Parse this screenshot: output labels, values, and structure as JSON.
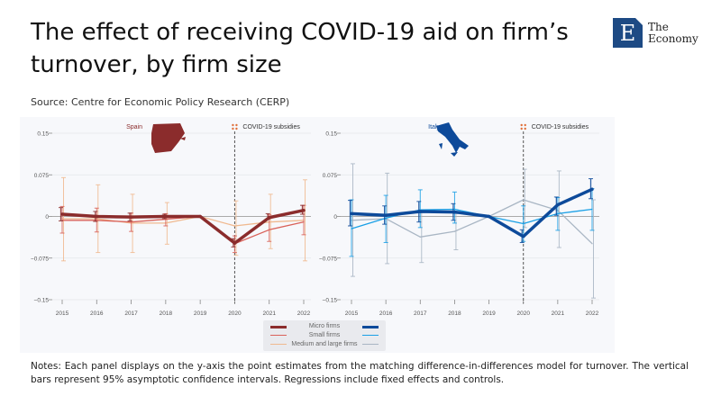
{
  "title": "The effect of receiving COVID-19 aid on firm’s turnover, by firm size",
  "source": "Source: Centre for Economic Policy Research (CERP)",
  "logo": {
    "mark": "E",
    "line1": "The",
    "line2": "Economy"
  },
  "notes": "Notes: Each panel displays on the y-axis the point estimates from the matching difference-in-differences model for turnover. The vertical bars represent 95% asymptotic confidence intervals. Regressions include fixed effects and controls.",
  "legend": {
    "items": [
      "Micro firms",
      "Small firms",
      "Medium and large firms"
    ]
  },
  "colors": {
    "spain": [
      "#8b2c2c",
      "#d9625a",
      "#f0b98f"
    ],
    "italy": [
      "#0d4a9a",
      "#1aa0e6",
      "#a9b6c4"
    ],
    "annotation": "#e0703a"
  },
  "chart_data": [
    {
      "type": "line",
      "title": "Spain",
      "annotation": "COVID-19 subsidies",
      "annotation_x": "2020",
      "x": [
        "2015",
        "2016",
        "2017",
        "2018",
        "2019",
        "2020",
        "2021",
        "2022"
      ],
      "ylim": [
        -0.15,
        0.15
      ],
      "yticks": [
        "0.15",
        "0.075",
        "0",
        "−0.075",
        "−0.15"
      ],
      "ytick_values": [
        0.15,
        0.075,
        0,
        -0.075,
        -0.15
      ],
      "series": [
        {
          "name": "Micro firms",
          "values": [
            0.004,
            0,
            -0.001,
            0,
            0,
            -0.048,
            -0.002,
            0.011
          ],
          "ci_low": [
            -0.008,
            -0.009,
            -0.008,
            -0.004,
            0,
            -0.055,
            -0.005,
            0.004
          ],
          "ci_high": [
            0.016,
            0.009,
            0.006,
            0.004,
            0,
            -0.04,
            0.005,
            0.02
          ]
        },
        {
          "name": "Small firms",
          "values": [
            -0.007,
            -0.007,
            -0.01,
            -0.005,
            0,
            -0.049,
            -0.024,
            -0.01
          ],
          "ci_low": [
            -0.03,
            -0.028,
            -0.027,
            -0.017,
            0,
            -0.065,
            -0.045,
            -0.033
          ],
          "ci_high": [
            0.018,
            0.015,
            0.006,
            0.005,
            0,
            -0.035,
            0.003,
            0.02
          ]
        },
        {
          "name": "Medium and large firms",
          "values": [
            -0.004,
            -0.004,
            -0.012,
            -0.012,
            0,
            -0.017,
            -0.01,
            -0.007
          ],
          "ci_low": [
            -0.08,
            -0.065,
            -0.065,
            -0.05,
            0,
            -0.07,
            -0.058,
            -0.08
          ],
          "ci_high": [
            0.07,
            0.057,
            0.04,
            0.025,
            0,
            0.028,
            0.04,
            0.066
          ]
        }
      ]
    },
    {
      "type": "line",
      "title": "Italy",
      "annotation": "COVID-19 subsidies",
      "annotation_x": "2020",
      "x": [
        "2015",
        "2016",
        "2017",
        "2018",
        "2019",
        "2020",
        "2021",
        "2022"
      ],
      "ylim": [
        -0.15,
        0.15
      ],
      "yticks": [
        "0.15",
        "0.075",
        "0",
        "−0.075",
        "−0.15"
      ],
      "ytick_values": [
        0.15,
        0.075,
        0,
        -0.075,
        -0.15
      ],
      "series": [
        {
          "name": "Micro firms",
          "values": [
            0.005,
            0.002,
            0.009,
            0.008,
            0,
            -0.036,
            0.021,
            0.049
          ],
          "ci_low": [
            -0.017,
            -0.014,
            -0.01,
            -0.007,
            0,
            -0.047,
            0.002,
            0.032
          ],
          "ci_high": [
            0.029,
            0.019,
            0.027,
            0.023,
            0,
            -0.024,
            0.035,
            0.068
          ]
        },
        {
          "name": "Small firms",
          "values": [
            -0.022,
            -0.003,
            0.012,
            0.013,
            0,
            -0.013,
            0.005,
            0.013
          ],
          "ci_low": [
            -0.072,
            -0.047,
            -0.02,
            -0.012,
            0,
            -0.045,
            -0.025,
            -0.025
          ],
          "ci_high": [
            0.03,
            0.038,
            0.048,
            0.044,
            0,
            0.019,
            0.034,
            0.05
          ]
        },
        {
          "name": "Medium and large firms",
          "values": [
            -0.007,
            -0.004,
            -0.037,
            -0.027,
            0,
            0.03,
            0.011,
            -0.049
          ],
          "ci_low": [
            -0.108,
            -0.085,
            -0.083,
            -0.06,
            0,
            -0.02,
            -0.056,
            -0.147
          ],
          "ci_high": [
            0.095,
            0.078,
            0.008,
            0.005,
            0,
            0.085,
            0.082,
            0.03
          ]
        }
      ]
    }
  ]
}
